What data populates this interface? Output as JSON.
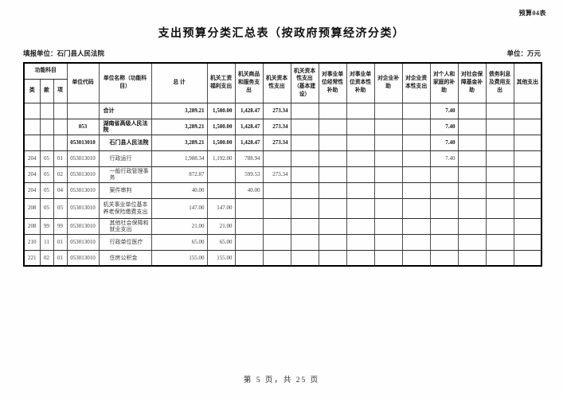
{
  "page": {
    "corner_label": "预算04表",
    "title": "支出预算分类汇总表（按政府预算经济分类）",
    "reporting_unit": "填报单位：石门县人民法院",
    "unit_note": "单位：万元",
    "footer": "第 5 页，共 25 页",
    "colors": {
      "paper": "#fefefe",
      "ink": "#101010",
      "grid": "#2e2e2e"
    }
  },
  "table": {
    "header": {
      "func_group": "功能科目",
      "func_cols": [
        "类",
        "款",
        "项"
      ],
      "unit_code": "单位代码",
      "unit_name": "单位名称（功能科目）",
      "total": "总  计",
      "value_cols": [
        "机关工资福利支出",
        "机关商品和服务支出",
        "机关资本性支出",
        "机关资本性支出（基本建设）",
        "对事业单位经常性补助",
        "对事业单位资本性补助",
        "对企业补助",
        "对企业资本性支出",
        "对个人和家庭的补助",
        "对社会保障基金补助",
        "债务利息及费用支出",
        "其他支出"
      ]
    },
    "rows": [
      {
        "cls": "",
        "sec": "",
        "itm": "",
        "code": "",
        "name": "合计",
        "bold": true,
        "indent": false,
        "tall": false,
        "values": [
          "3,289.21",
          "1,580.00",
          "1,428.47",
          "273.34",
          "",
          "",
          "",
          "",
          "",
          "7.40",
          "",
          "",
          ""
        ]
      },
      {
        "cls": "",
        "sec": "",
        "itm": "",
        "code": "053",
        "name": "湖南省高级人民法院",
        "bold": true,
        "indent": false,
        "tall": false,
        "values": [
          "3,289.21",
          "1,580.00",
          "1,428.47",
          "273.34",
          "",
          "",
          "",
          "",
          "",
          "7.40",
          "",
          "",
          ""
        ]
      },
      {
        "cls": "",
        "sec": "",
        "itm": "",
        "code": "053013010",
        "name": "石门县人民法院",
        "bold": true,
        "indent": true,
        "tall": false,
        "values": [
          "3,289.21",
          "1,580.00",
          "1,428.47",
          "273.34",
          "",
          "",
          "",
          "",
          "",
          "7.40",
          "",
          "",
          ""
        ]
      },
      {
        "cls": "204",
        "sec": "05",
        "itm": "01",
        "code": "053013010",
        "name": "行政运行",
        "bold": false,
        "indent": true,
        "tall": false,
        "values": [
          "1,988.34",
          "1,192.00",
          "788.94",
          "",
          "",
          "",
          "",
          "",
          "",
          "7.40",
          "",
          "",
          ""
        ]
      },
      {
        "cls": "204",
        "sec": "05",
        "itm": "02",
        "code": "053013010",
        "name": "一般行政管理事务",
        "bold": false,
        "indent": true,
        "tall": false,
        "values": [
          "872.87",
          "",
          "599.53",
          "273.34",
          "",
          "",
          "",
          "",
          "",
          "",
          "",
          "",
          ""
        ]
      },
      {
        "cls": "204",
        "sec": "05",
        "itm": "04",
        "code": "053013010",
        "name": "案件审判",
        "bold": false,
        "indent": true,
        "tall": false,
        "values": [
          "40.00",
          "",
          "40.00",
          "",
          "",
          "",
          "",
          "",
          "",
          "",
          "",
          "",
          ""
        ]
      },
      {
        "cls": "208",
        "sec": "05",
        "itm": "05",
        "code": "053013010",
        "name": "机关事业单位基本养老保险缴费支出",
        "bold": false,
        "indent": false,
        "tall": true,
        "values": [
          "147.00",
          "147.00",
          "",
          "",
          "",
          "",
          "",
          "",
          "",
          "",
          "",
          "",
          ""
        ]
      },
      {
        "cls": "208",
        "sec": "99",
        "itm": "99",
        "code": "053013010",
        "name": "其他社会保障和就业支出",
        "bold": false,
        "indent": true,
        "tall": false,
        "values": [
          "21.00",
          "21.00",
          "",
          "",
          "",
          "",
          "",
          "",
          "",
          "",
          "",
          "",
          ""
        ]
      },
      {
        "cls": "210",
        "sec": "11",
        "itm": "01",
        "code": "053013010",
        "name": "行政单位医疗",
        "bold": false,
        "indent": true,
        "tall": false,
        "values": [
          "65.00",
          "65.00",
          "",
          "",
          "",
          "",
          "",
          "",
          "",
          "",
          "",
          "",
          ""
        ]
      },
      {
        "cls": "221",
        "sec": "02",
        "itm": "01",
        "code": "053013010",
        "name": "住房公积金",
        "bold": false,
        "indent": true,
        "tall": false,
        "values": [
          "155.00",
          "155.00",
          "",
          "",
          "",
          "",
          "",
          "",
          "",
          "",
          "",
          "",
          ""
        ]
      }
    ]
  }
}
